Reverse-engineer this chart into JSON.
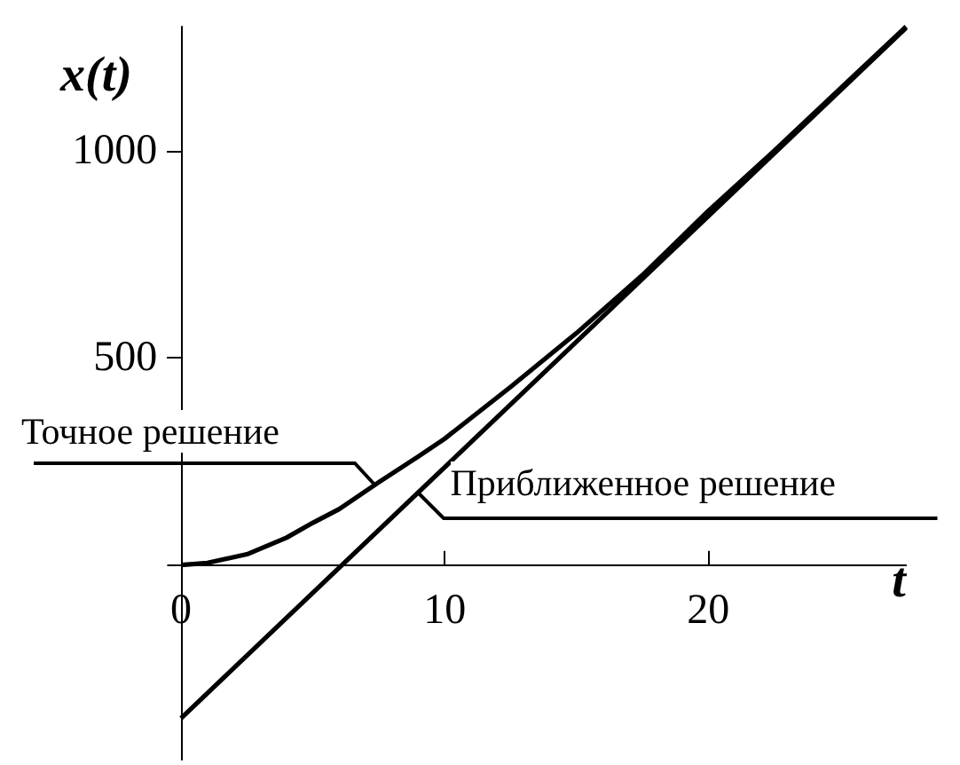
{
  "chart_data": {
    "type": "line",
    "xlabel": "t",
    "ylabel": "x(t)",
    "xlim": [
      -0.5,
      27.5
    ],
    "ylim": [
      -470,
      1300
    ],
    "xticks": [
      0,
      10,
      20
    ],
    "yticks": [
      500,
      1000
    ],
    "series": [
      {
        "x": [
          0,
          1,
          2.5,
          4,
          5,
          6,
          7.5,
          9,
          10,
          12.5,
          15,
          17.5,
          20,
          22.5,
          25,
          27.5
        ],
        "values": [
          0,
          5,
          26,
          66,
          102,
          135,
          200,
          262,
          305,
          430,
          560,
          700,
          855,
          1000,
          1150,
          1300
        ],
        "color": "#000000"
      },
      {
        "x": [
          0,
          27.5
        ],
        "values": [
          -370,
          1297
        ],
        "color": "#000000"
      }
    ],
    "annotations": [
      {
        "text": "Точное решение",
        "x": 7.4,
        "y": 190
      },
      {
        "text": "Приближенное решение",
        "x": 9.0,
        "y": 175
      }
    ],
    "grid": false,
    "marker": "none",
    "line_style": "solid"
  }
}
